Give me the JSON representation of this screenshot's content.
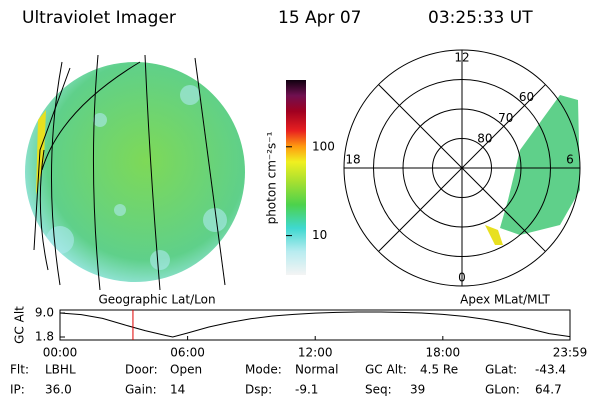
{
  "header": {
    "title": "Ultraviolet Imager",
    "date": "15 Apr 07",
    "time": "03:25:33 UT"
  },
  "colorbar": {
    "label": "photon cm⁻²s⁻¹",
    "log": true,
    "ylim": [
      3.6,
      565
    ],
    "yticks": [
      10,
      100
    ]
  },
  "polar": {
    "label": "Apex MLat/MLT",
    "rlim": [
      90,
      50
    ],
    "rings": [
      80,
      70,
      60
    ],
    "mlt_labels": [
      {
        "value": 12,
        "label": "12"
      },
      {
        "value": 18,
        "label": "18"
      },
      {
        "value": 6,
        "label": "6"
      },
      {
        "value": 0,
        "label": "0"
      }
    ]
  },
  "globe": {
    "label": "Geographic Lat/Lon"
  },
  "chart_data": {
    "type": "line",
    "ylabel": "GC Alt",
    "x": [
      0,
      1,
      2,
      3,
      4,
      5,
      5.3,
      6,
      7,
      8,
      9,
      10,
      11,
      12,
      13,
      14,
      14.6,
      15,
      16,
      17,
      18,
      19,
      20,
      21,
      22,
      23,
      23.98
    ],
    "series": [
      {
        "name": "GC Alt",
        "color": "#000000",
        "values": [
          9.0,
          8.5,
          7.4,
          5.5,
          3.7,
          2.2,
          1.8,
          3.0,
          4.8,
          6.2,
          7.3,
          8.1,
          8.6,
          8.95,
          9.2,
          9.3,
          9.3,
          9.3,
          9.2,
          9.0,
          8.6,
          8.0,
          7.1,
          5.9,
          4.4,
          2.8,
          1.9
        ]
      }
    ],
    "xlim": [
      0,
      23.98
    ],
    "ylim": [
      0.9,
      9.9
    ],
    "xticks": [
      {
        "value": 0,
        "label": "00:00"
      },
      {
        "value": 6,
        "label": "06:00"
      },
      {
        "value": 12,
        "label": "12:00"
      },
      {
        "value": 18,
        "label": "18:00"
      },
      {
        "value": 23.98,
        "label": "23:59"
      }
    ],
    "yticks": [
      1.8,
      {
        "value": 9,
        "label": "9.0"
      }
    ],
    "marker_x": 3.43,
    "marker_color": "#e00000"
  },
  "footer": {
    "rows": [
      [
        [
          "Flt:",
          "LBHL"
        ],
        [
          "Door:",
          "Open"
        ],
        [
          "Mode:",
          "Normal"
        ],
        [
          "GC Alt:",
          "4.5 Re"
        ],
        [
          "GLat:",
          "-43.4"
        ]
      ],
      [
        [
          "IP:",
          "36.0"
        ],
        [
          "Gain:",
          "14"
        ],
        [
          "Dsp:",
          "-9.1"
        ],
        [
          "Seq:",
          "39"
        ],
        [
          "GLon:",
          "64.7"
        ]
      ]
    ]
  }
}
